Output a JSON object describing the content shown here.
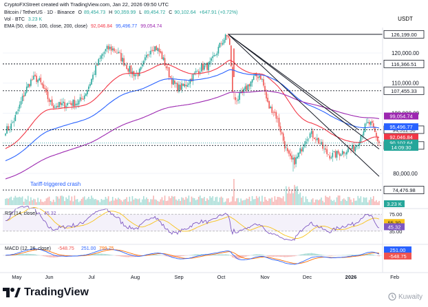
{
  "credit": "CryptoFXStreet created with TradingView.com, Jan 22, 2026 09:50 UTC",
  "header": {
    "symbol": "Bitcoin / TetherUS · 1D · Binance",
    "o_label": "O",
    "o_val": "89,454.73",
    "h_label": "H",
    "h_val": "90,359.99",
    "l_label": "L",
    "l_val": "89,454.72",
    "c_label": "C",
    "c_val": "90,102.64",
    "change": "+647.91 (+0.72%)",
    "vol_label": "Vol · BTC",
    "vol_val": "3.23 K",
    "ema_label": "EMA (50, close, 100, close, 200, close)",
    "ema50_val": "92,046.84",
    "ema100_val": "95,496.77",
    "ema200_val": "99,054.74"
  },
  "currency": "USDT",
  "annotation": "Tariff-triggered crash",
  "rsi_label": "RSI (14, close)",
  "rsi_value_text": "45.32",
  "macd_label": "MACD (12, 26, close)",
  "macd_hist_text": "-548.75",
  "macd_line_text": "251.00",
  "macd_signal_text": "799.75",
  "brand": "TradingView",
  "watermark": "Kuwaity",
  "colors": {
    "up": "#26a69a",
    "down": "#ef5350",
    "ema50": "#f23645",
    "ema100": "#2962ff",
    "ema200": "#9c27b0",
    "rsi": "#7e57c2",
    "rsi_ma": "#f7c21a",
    "macd": "#2962ff",
    "signal": "#ff6d00"
  },
  "chart_data": {
    "type": "candlestick",
    "x_ticks": [
      "May",
      "Jun",
      "Jul",
      "Aug",
      "Sep",
      "Oct",
      "Nov",
      "Dec",
      "2026",
      "Feb"
    ],
    "y_ticks": [
      "120,000.00",
      "110,000.00",
      "100,000.00",
      "90,000.00",
      "80,000.00"
    ],
    "y_tick_values": [
      120000,
      110000,
      100000,
      90000,
      80000
    ],
    "ylim": [
      69000,
      128000
    ],
    "price_key": [
      {
        "anchor": "May 1",
        "price": 94500
      },
      {
        "anchor": "May 22",
        "price": 111500
      },
      {
        "anchor": "Jun 5",
        "price": 102500
      },
      {
        "anchor": "Jun 20",
        "price": 103500
      },
      {
        "anchor": "Jul 14",
        "price": 121500
      },
      {
        "anchor": "Aug 2",
        "price": 113000
      },
      {
        "anchor": "Aug 14",
        "price": 122000
      },
      {
        "anchor": "Sep 1",
        "price": 108500
      },
      {
        "anchor": "Sep 20",
        "price": 115500
      },
      {
        "anchor": "Oct 6",
        "price": 125500
      },
      {
        "anchor": "Oct 10",
        "price": 104500
      },
      {
        "anchor": "Oct 28",
        "price": 112500
      },
      {
        "anchor": "Nov 5",
        "price": 101500
      },
      {
        "anchor": "Nov 21",
        "price": 84000
      },
      {
        "anchor": "Dec 3",
        "price": 93000
      },
      {
        "anchor": "Dec 18",
        "price": 86000
      },
      {
        "anchor": "Jan 1",
        "price": 88000
      },
      {
        "anchor": "Jan 14",
        "price": 96500
      },
      {
        "anchor": "Jan 22",
        "price": 90102
      }
    ],
    "levels": [
      {
        "label": "126,199.00",
        "value": 126199,
        "line": "solid"
      },
      {
        "label": "116,366.51",
        "value": 116366.51,
        "line": "dashed"
      },
      {
        "label": "107,455.33",
        "value": 107455.33,
        "line": "dashed"
      },
      {
        "label": "94,512.50",
        "value": 94512.5,
        "line": "dashed"
      },
      {
        "label": "89,284.23",
        "value": 89284.23,
        "line": "dashed"
      },
      {
        "label": "74,476.98",
        "value": 74476.98,
        "line": "dashed"
      }
    ],
    "tags": [
      {
        "label": "99,054.74",
        "value": 99054.74,
        "color": "ema200"
      },
      {
        "label": "95,496.77",
        "value": 95496.77,
        "color": "ema100"
      },
      {
        "label": "92,046.84",
        "value": 92046.84,
        "color": "ema50"
      },
      {
        "label": "90,102.64",
        "value": 90102.64,
        "color": "up"
      },
      {
        "label": "14:09:30",
        "value": 88650,
        "color": "up"
      }
    ],
    "volume_tag": "3.23 K",
    "rsi": {
      "ticks": [
        "75.00",
        "35.00"
      ],
      "tick_values": [
        75,
        35
      ],
      "tags": [
        {
          "label": "55.30",
          "value": 55.3,
          "color": "rsi_ma"
        },
        {
          "label": "45.32",
          "value": 45.32,
          "color": "rsi"
        }
      ]
    },
    "macd": {
      "tags": [
        {
          "label": "251.00",
          "color": "macd"
        },
        {
          "label": "-548.75",
          "color": "down"
        }
      ]
    }
  }
}
